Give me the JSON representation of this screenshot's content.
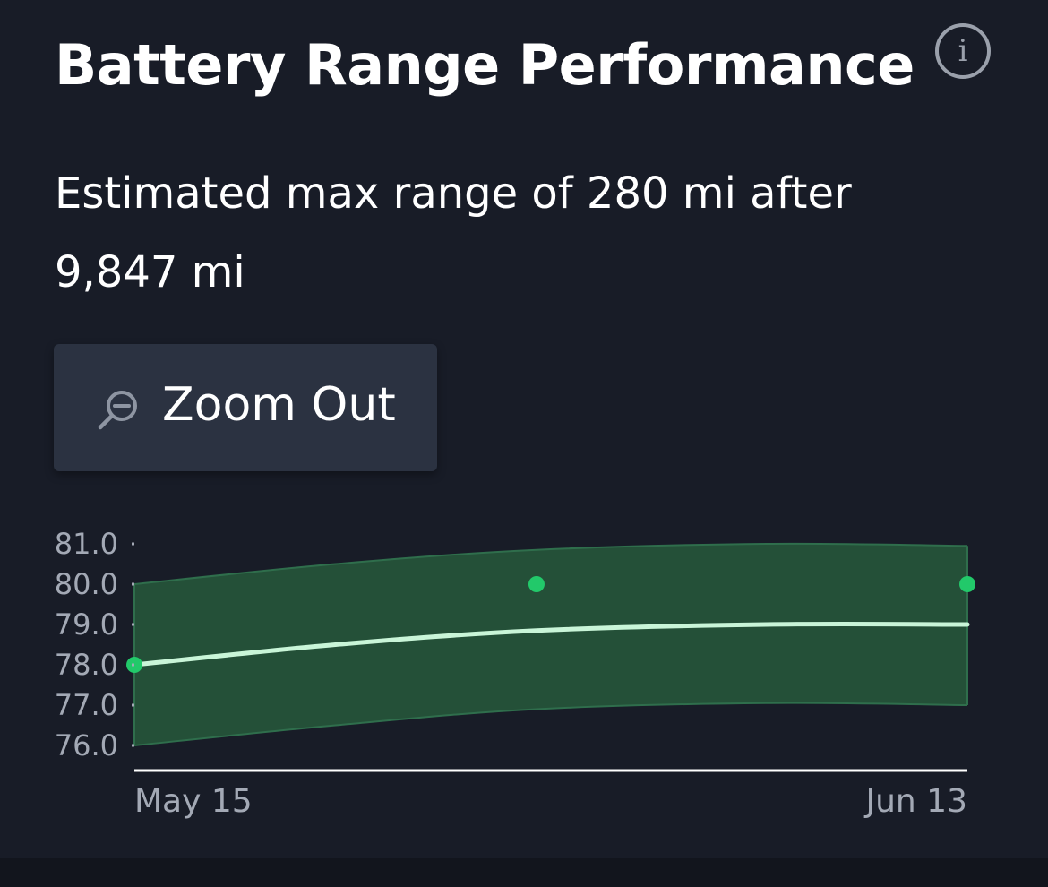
{
  "header": {
    "title": "Battery Range Performance",
    "info_icon": "info-icon",
    "info_glyph": "i"
  },
  "summary": {
    "text": "Estimated max range of 280 mi after 9,847 mi"
  },
  "zoom_button": {
    "label": "Zoom Out",
    "icon": "zoom-out-icon"
  },
  "colors": {
    "background": "#181c27",
    "band_fill": "#245038",
    "band_edge": "#2f6e4c",
    "trend_line": "#c9f5d8",
    "points": "#22c96a",
    "axis": "#ffffff",
    "tick_text": "#a3a9b5"
  },
  "chart_data": {
    "type": "line",
    "x_labels": [
      "May 15",
      "Jun 13"
    ],
    "y_ticks": [
      "81.0",
      "80.0",
      "79.0",
      "78.0",
      "77.0",
      "76.0"
    ],
    "ylim": [
      76,
      81
    ],
    "xlim": [
      "2024-05-15",
      "2024-06-13"
    ],
    "trend": {
      "x": [
        "2024-05-15",
        "2024-05-22",
        "2024-05-29",
        "2024-06-06",
        "2024-06-13"
      ],
      "y": [
        78.0,
        78.5,
        78.85,
        79.0,
        79.0
      ]
    },
    "band": {
      "x": [
        "2024-05-15",
        "2024-05-22",
        "2024-05-29",
        "2024-06-06",
        "2024-06-13"
      ],
      "upper": [
        80.0,
        80.5,
        80.85,
        81.0,
        80.95
      ],
      "lower": [
        76.0,
        76.5,
        76.9,
        77.05,
        77.0
      ]
    },
    "points": {
      "x": [
        "2024-05-15",
        "2024-05-29",
        "2024-06-13"
      ],
      "y": [
        78.0,
        80.0,
        80.0
      ]
    },
    "grid": false
  }
}
